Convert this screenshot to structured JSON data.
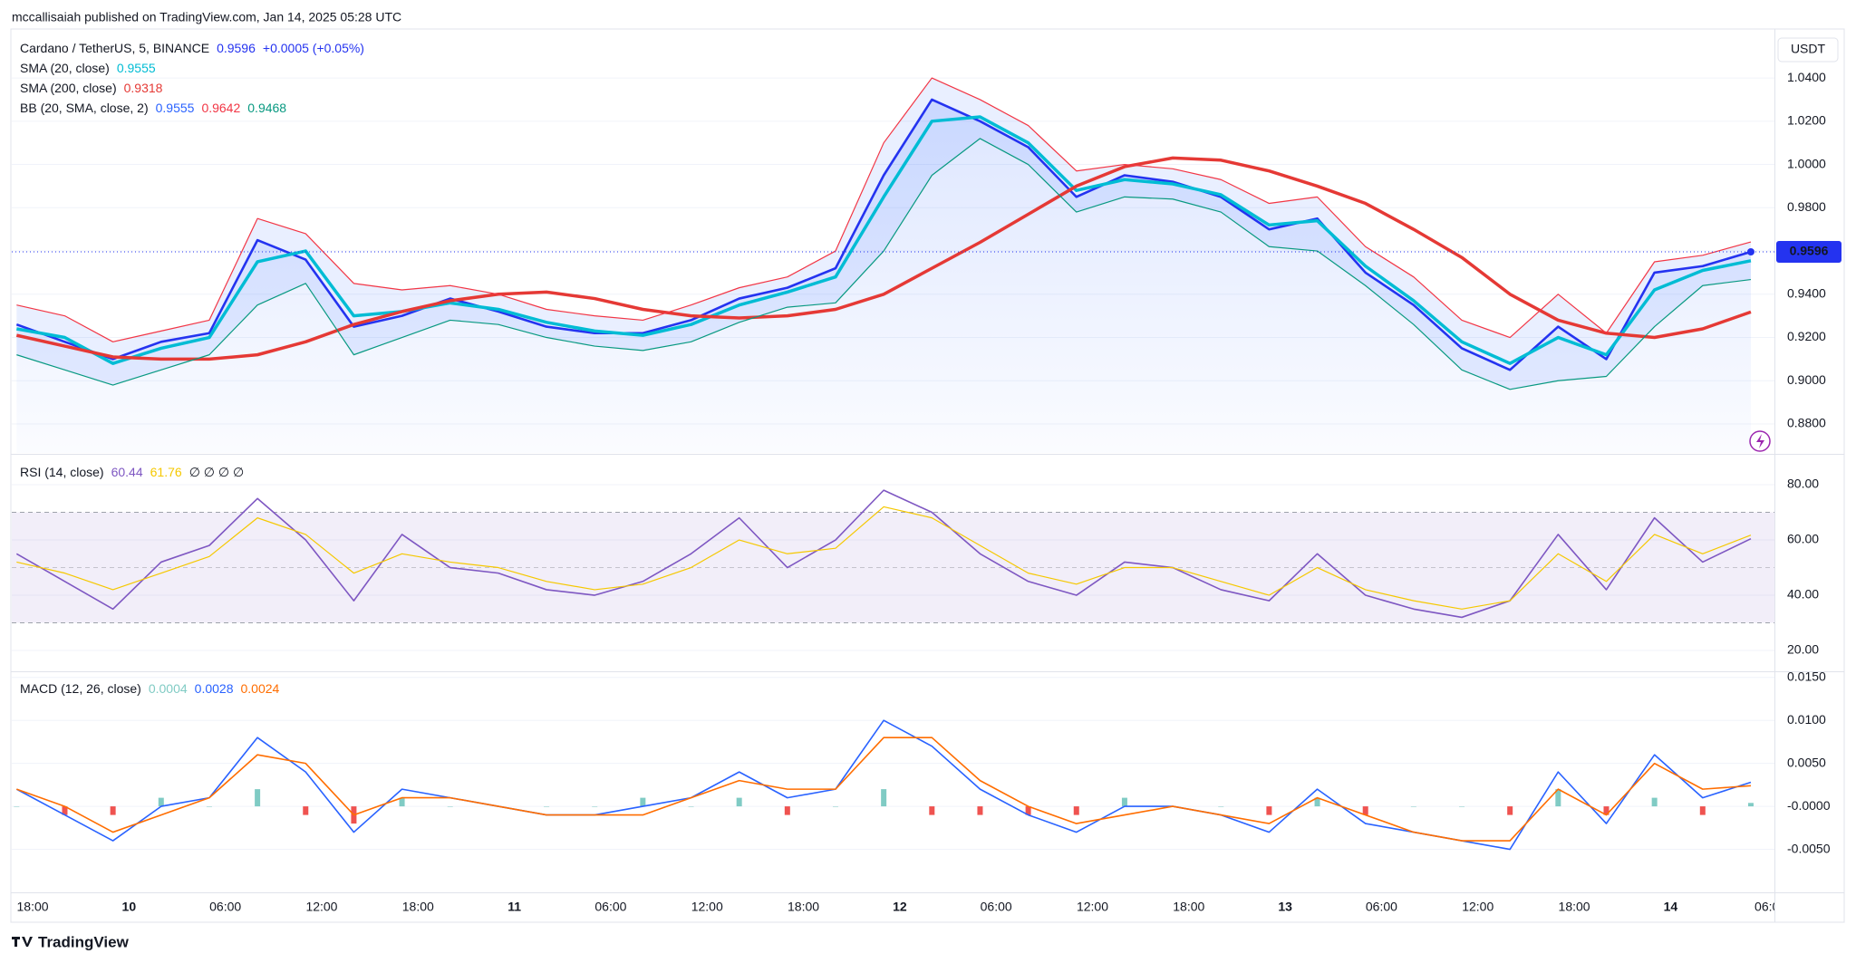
{
  "header": {
    "publisher": "mccallisaiah published on TradingView.com, Jan 14, 2025 05:28 UTC"
  },
  "footer": {
    "brand": "TradingView"
  },
  "chart_data": [
    {
      "type": "line",
      "grid": true,
      "currency": "USDT",
      "change": "+0.0005 (+0.05%)",
      "xlim": [
        16.7,
        126.3
      ],
      "ylim": [
        0.8666,
        1.0593
      ],
      "yticks": [
        {
          "value": 0.88,
          "label": "0.8800"
        },
        {
          "value": 0.9,
          "label": "0.9000"
        },
        {
          "value": 0.92,
          "label": "0.9200"
        },
        {
          "value": 0.94,
          "label": "0.9400"
        },
        {
          "value": 0.96,
          "label": "0.9600"
        },
        {
          "value": 0.98,
          "label": "0.9800"
        },
        {
          "value": 1.0,
          "label": "1.0000"
        },
        {
          "value": 1.02,
          "label": "1.0200"
        },
        {
          "value": 1.04,
          "label": "1.0400"
        }
      ],
      "x": [
        17,
        20,
        23,
        26,
        29,
        32,
        35,
        38,
        41,
        44,
        47,
        50,
        53,
        56,
        59,
        62,
        65,
        68,
        71,
        74,
        77,
        80,
        83,
        86,
        89,
        92,
        95,
        98,
        101,
        104,
        107,
        110,
        113,
        116,
        119,
        122,
        125
      ],
      "series": [
        {
          "name": "Cardano / TetherUS, 5, BINANCE",
          "color": "#2433f0",
          "width": 2.6,
          "area": true,
          "last_tag": true,
          "values": [
            0.926,
            0.918,
            0.91,
            0.918,
            0.922,
            0.965,
            0.956,
            0.925,
            0.93,
            0.938,
            0.932,
            0.925,
            0.922,
            0.922,
            0.928,
            0.938,
            0.943,
            0.952,
            0.995,
            1.03,
            1.02,
            1.008,
            0.985,
            0.995,
            0.992,
            0.985,
            0.97,
            0.975,
            0.95,
            0.935,
            0.915,
            0.905,
            0.925,
            0.91,
            0.95,
            0.953,
            0.9596
          ]
        },
        {
          "name": "SMA (20, close)",
          "color": "#00bcd4",
          "width": 3.5,
          "values": [
            0.924,
            0.92,
            0.908,
            0.915,
            0.92,
            0.955,
            0.96,
            0.93,
            0.932,
            0.936,
            0.933,
            0.927,
            0.923,
            0.921,
            0.926,
            0.935,
            0.941,
            0.948,
            0.985,
            1.02,
            1.022,
            1.01,
            0.988,
            0.993,
            0.991,
            0.986,
            0.972,
            0.974,
            0.953,
            0.937,
            0.918,
            0.908,
            0.92,
            0.912,
            0.942,
            0.951,
            0.9555
          ]
        },
        {
          "name": "SMA (200, close)",
          "color": "#e53935",
          "width": 3.5,
          "values": [
            0.921,
            0.916,
            0.911,
            0.91,
            0.91,
            0.912,
            0.918,
            0.926,
            0.932,
            0.937,
            0.94,
            0.941,
            0.938,
            0.933,
            0.93,
            0.929,
            0.93,
            0.933,
            0.94,
            0.952,
            0.964,
            0.977,
            0.99,
            0.999,
            1.003,
            1.002,
            0.997,
            0.99,
            0.982,
            0.97,
            0.957,
            0.94,
            0.928,
            0.922,
            0.92,
            0.924,
            0.9318
          ]
        },
        {
          "name": "BB (20, SMA, close, 2)",
          "color": "#2962ff",
          "line": false,
          "values": [
            0.924,
            0.92,
            0.908,
            0.915,
            0.92,
            0.955,
            0.96,
            0.93,
            0.932,
            0.936,
            0.933,
            0.927,
            0.923,
            0.921,
            0.926,
            0.935,
            0.941,
            0.948,
            0.985,
            1.02,
            1.022,
            1.01,
            0.988,
            0.993,
            0.991,
            0.986,
            0.972,
            0.974,
            0.953,
            0.937,
            0.918,
            0.908,
            0.92,
            0.912,
            0.942,
            0.951,
            0.9555
          ]
        },
        {
          "color": "#f23645",
          "width": 1.2,
          "band_fill": "rgba(41,98,255,0.10)",
          "values": [
            0.935,
            0.93,
            0.918,
            0.923,
            0.928,
            0.975,
            0.968,
            0.945,
            0.942,
            0.944,
            0.94,
            0.933,
            0.93,
            0.928,
            0.935,
            0.943,
            0.948,
            0.96,
            1.01,
            1.04,
            1.03,
            1.018,
            0.997,
            1.0,
            0.998,
            0.993,
            0.982,
            0.985,
            0.962,
            0.948,
            0.928,
            0.92,
            0.94,
            0.922,
            0.955,
            0.958,
            0.9642
          ]
        },
        {
          "color": "#089981",
          "width": 1.2,
          "values": [
            0.912,
            0.905,
            0.898,
            0.905,
            0.912,
            0.935,
            0.945,
            0.912,
            0.92,
            0.928,
            0.926,
            0.92,
            0.916,
            0.914,
            0.918,
            0.927,
            0.934,
            0.936,
            0.96,
            0.995,
            1.012,
            1.0,
            0.978,
            0.985,
            0.984,
            0.978,
            0.962,
            0.96,
            0.944,
            0.926,
            0.905,
            0.896,
            0.9,
            0.902,
            0.925,
            0.944,
            0.9468
          ]
        }
      ]
    },
    {
      "type": "line",
      "grid": true,
      "extra_label": "∅ ∅ ∅ ∅",
      "xlim": [
        16.7,
        126.3
      ],
      "ylim": [
        12.8,
        90.5
      ],
      "yticks": [
        {
          "value": 20,
          "label": "20.00"
        },
        {
          "value": 40,
          "label": "40.00"
        },
        {
          "value": 60,
          "label": "60.00"
        },
        {
          "value": 80,
          "label": "80.00"
        }
      ],
      "band": {
        "lower": 30,
        "middle": 50,
        "upper": 70
      },
      "x": [
        17,
        20,
        23,
        26,
        29,
        32,
        35,
        38,
        41,
        44,
        47,
        50,
        53,
        56,
        59,
        62,
        65,
        68,
        71,
        74,
        77,
        80,
        83,
        86,
        89,
        92,
        95,
        98,
        101,
        104,
        107,
        110,
        113,
        116,
        119,
        122,
        125
      ],
      "series": [
        {
          "name": "RSI (14, close)",
          "color": "#7e57c2",
          "width": 1.6,
          "values": [
            55,
            45,
            35,
            52,
            58,
            75,
            60,
            38,
            62,
            50,
            48,
            42,
            40,
            45,
            55,
            68,
            50,
            60,
            78,
            70,
            55,
            45,
            40,
            52,
            50,
            42,
            38,
            55,
            40,
            35,
            32,
            38,
            62,
            42,
            68,
            52,
            60.44
          ]
        },
        {
          "color": "#f5c800",
          "width": 1.2,
          "values": [
            52,
            48,
            42,
            48,
            54,
            68,
            62,
            48,
            55,
            52,
            50,
            45,
            42,
            44,
            50,
            60,
            55,
            57,
            72,
            68,
            58,
            48,
            44,
            50,
            50,
            45,
            40,
            50,
            42,
            38,
            35,
            38,
            55,
            45,
            62,
            55,
            61.76
          ]
        }
      ]
    },
    {
      "type": "line",
      "grid": true,
      "xlim": [
        16.7,
        126.3
      ],
      "ylim": [
        -0.01,
        0.0155
      ],
      "yticks": [
        {
          "value": -0.005,
          "label": "-0.0050"
        },
        {
          "value": 0,
          "label": "-0.0000"
        },
        {
          "value": 0.005,
          "label": "0.0050"
        },
        {
          "value": 0.01,
          "label": "0.0100"
        },
        {
          "value": 0.015,
          "label": "0.0150"
        }
      ],
      "xticks": [
        {
          "value": 18,
          "label": "18:00"
        },
        {
          "value": 24,
          "label": "10"
        },
        {
          "value": 30,
          "label": "06:00"
        },
        {
          "value": 36,
          "label": "12:00"
        },
        {
          "value": 42,
          "label": "18:00"
        },
        {
          "value": 48,
          "label": "11"
        },
        {
          "value": 54,
          "label": "06:00"
        },
        {
          "value": 60,
          "label": "12:00"
        },
        {
          "value": 66,
          "label": "18:00"
        },
        {
          "value": 72,
          "label": "12"
        },
        {
          "value": 78,
          "label": "06:00"
        },
        {
          "value": 84,
          "label": "12:00"
        },
        {
          "value": 90,
          "label": "18:00"
        },
        {
          "value": 96,
          "label": "13"
        },
        {
          "value": 102,
          "label": "06:00"
        },
        {
          "value": 108,
          "label": "12:00"
        },
        {
          "value": 114,
          "label": "18:00"
        },
        {
          "value": 120,
          "label": "14"
        },
        {
          "value": 126,
          "label": "06:0"
        }
      ],
      "x": [
        17,
        20,
        23,
        26,
        29,
        32,
        35,
        38,
        41,
        44,
        47,
        50,
        53,
        56,
        59,
        62,
        65,
        68,
        71,
        74,
        77,
        80,
        83,
        86,
        89,
        92,
        95,
        98,
        101,
        104,
        107,
        110,
        113,
        116,
        119,
        122,
        125
      ],
      "series": [
        {
          "name": "MACD (12, 26, close)",
          "style": "histogram",
          "color": "#80cbc4",
          "negative_color": "#ef5350",
          "values": [
            0,
            -0.001,
            -0.001,
            0.001,
            0,
            0.002,
            -0.001,
            -0.002,
            0.001,
            0,
            0,
            0,
            0,
            0.001,
            0,
            0.001,
            -0.001,
            0,
            0.002,
            -0.001,
            -0.001,
            -0.001,
            -0.001,
            0.001,
            0,
            0,
            -0.001,
            0.001,
            -0.001,
            0,
            0,
            -0.001,
            0.002,
            -0.001,
            0.001,
            -0.001,
            0.0004
          ]
        },
        {
          "color": "#2962ff",
          "width": 1.6,
          "values": [
            0.002,
            -0.001,
            -0.004,
            0.0,
            0.001,
            0.008,
            0.004,
            -0.003,
            0.002,
            0.001,
            0.0,
            -0.001,
            -0.001,
            0.0,
            0.001,
            0.004,
            0.001,
            0.002,
            0.01,
            0.007,
            0.002,
            -0.001,
            -0.003,
            0.0,
            0.0,
            -0.001,
            -0.003,
            0.002,
            -0.002,
            -0.003,
            -0.004,
            -0.005,
            0.004,
            -0.002,
            0.006,
            0.001,
            0.0028
          ]
        },
        {
          "color": "#ff6d00",
          "width": 1.6,
          "values": [
            0.002,
            0.0,
            -0.003,
            -0.001,
            0.001,
            0.006,
            0.005,
            -0.001,
            0.001,
            0.001,
            0.0,
            -0.001,
            -0.001,
            -0.001,
            0.001,
            0.003,
            0.002,
            0.002,
            0.008,
            0.008,
            0.003,
            0.0,
            -0.002,
            -0.001,
            0.0,
            -0.001,
            -0.002,
            0.001,
            -0.001,
            -0.003,
            -0.004,
            -0.004,
            0.002,
            -0.001,
            0.005,
            0.002,
            0.0024
          ]
        }
      ]
    }
  ]
}
